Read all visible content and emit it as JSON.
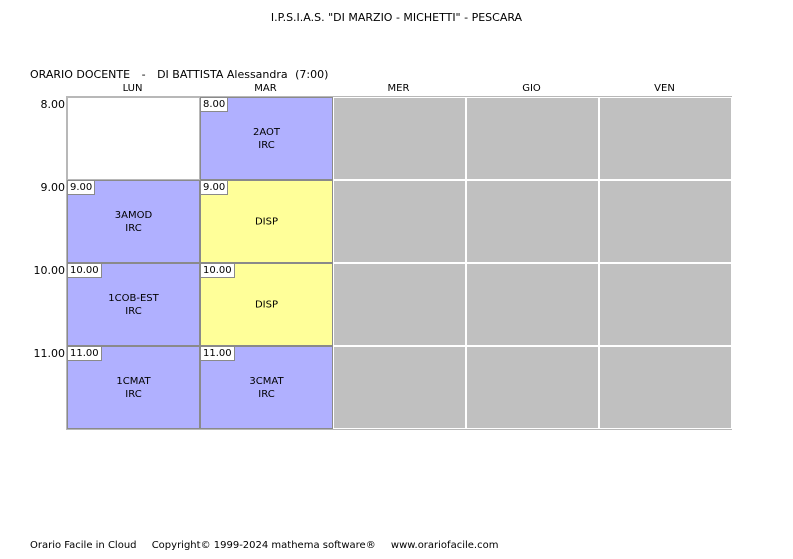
{
  "header": {
    "school": "I.P.S.I.A.S. \"DI MARZIO - MICHETTI\" - PESCARA",
    "schedule_label": "ORARIO DOCENTE",
    "separator": "-",
    "teacher": "DI BATTISTA Alessandra",
    "hours": "(7:00)"
  },
  "days": [
    "LUN",
    "MAR",
    "MER",
    "GIO",
    "VEN"
  ],
  "times": [
    "8.00",
    "9.00",
    "10.00",
    "11.00"
  ],
  "lessons": [
    {
      "day": 0,
      "slot": 0,
      "kind": "empty"
    },
    {
      "day": 1,
      "slot": 0,
      "kind": "blue",
      "start": "8.00",
      "class": "2AOT",
      "subject": "IRC"
    },
    {
      "day": 0,
      "slot": 1,
      "kind": "blue",
      "start": "9.00",
      "class": "3AMOD",
      "subject": "IRC"
    },
    {
      "day": 1,
      "slot": 1,
      "kind": "yellow",
      "start": "9.00",
      "class": "DISP",
      "subject": ""
    },
    {
      "day": 0,
      "slot": 2,
      "kind": "blue",
      "start": "10.00",
      "class": "1COB-EST",
      "subject": "IRC"
    },
    {
      "day": 1,
      "slot": 2,
      "kind": "yellow",
      "start": "10.00",
      "class": "DISP",
      "subject": ""
    },
    {
      "day": 0,
      "slot": 3,
      "kind": "blue",
      "start": "11.00",
      "class": "1CMAT",
      "subject": "IRC"
    },
    {
      "day": 1,
      "slot": 3,
      "kind": "blue",
      "start": "11.00",
      "class": "3CMAT",
      "subject": "IRC"
    }
  ],
  "colors": {
    "lesson": "#b0b0ff",
    "disp": "#ffff99",
    "unavailable": "#c0c0c0"
  },
  "footer": {
    "product": "Orario Facile in Cloud",
    "copyright": "Copyright© 1999-2024 mathema software®",
    "website": "www.orariofacile.com"
  }
}
